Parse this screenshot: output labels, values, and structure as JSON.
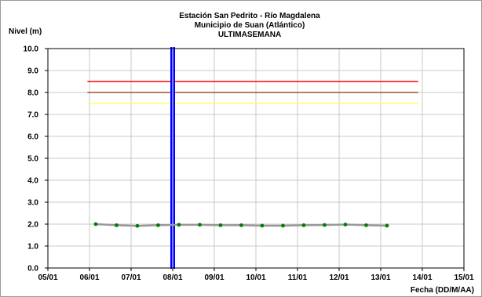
{
  "chart_data": {
    "type": "line",
    "title_lines": [
      "Estación San Pedrito - Río Magdalena",
      "Municipio de Suan (Atlántico)",
      "ULTIMASEMANA"
    ],
    "ylabel": "Nivel (m)",
    "xlabel": "Fecha (DD/M/AA)",
    "ylim": [
      0,
      10
    ],
    "yticks": [
      "0.0",
      "1.0",
      "2.0",
      "3.0",
      "4.0",
      "5.0",
      "6.0",
      "7.0",
      "8.0",
      "9.0",
      "10.0"
    ],
    "xlim": [
      0,
      10
    ],
    "xticks": [
      "05/01",
      "06/01",
      "07/01",
      "08/01",
      "09/01",
      "10/01",
      "11/01",
      "12/01",
      "13/01",
      "14/01",
      "15/01"
    ],
    "grid": true,
    "threshold_lines": [
      {
        "y": 8.5,
        "x_start": 0.95,
        "x_end": 8.9,
        "color": "#ff0000"
      },
      {
        "y": 8.0,
        "x_start": 0.95,
        "x_end": 8.9,
        "color": "#a0522d"
      },
      {
        "y": 7.5,
        "x_start": 0.95,
        "x_end": 8.9,
        "color": "#ffff66"
      }
    ],
    "current_date_marker": {
      "x": 3.0,
      "color": "#0000ff"
    },
    "series": [
      {
        "color": "#999999",
        "marker_color": "#008000",
        "x": [
          1.15,
          1.65,
          2.15,
          2.65,
          3.15,
          3.65,
          4.15,
          4.65,
          5.15,
          5.65,
          6.15,
          6.65,
          7.15,
          7.65,
          8.15
        ],
        "y": [
          2.0,
          1.95,
          1.92,
          1.95,
          1.97,
          1.97,
          1.95,
          1.95,
          1.93,
          1.93,
          1.95,
          1.96,
          1.98,
          1.95,
          1.93
        ]
      }
    ]
  }
}
